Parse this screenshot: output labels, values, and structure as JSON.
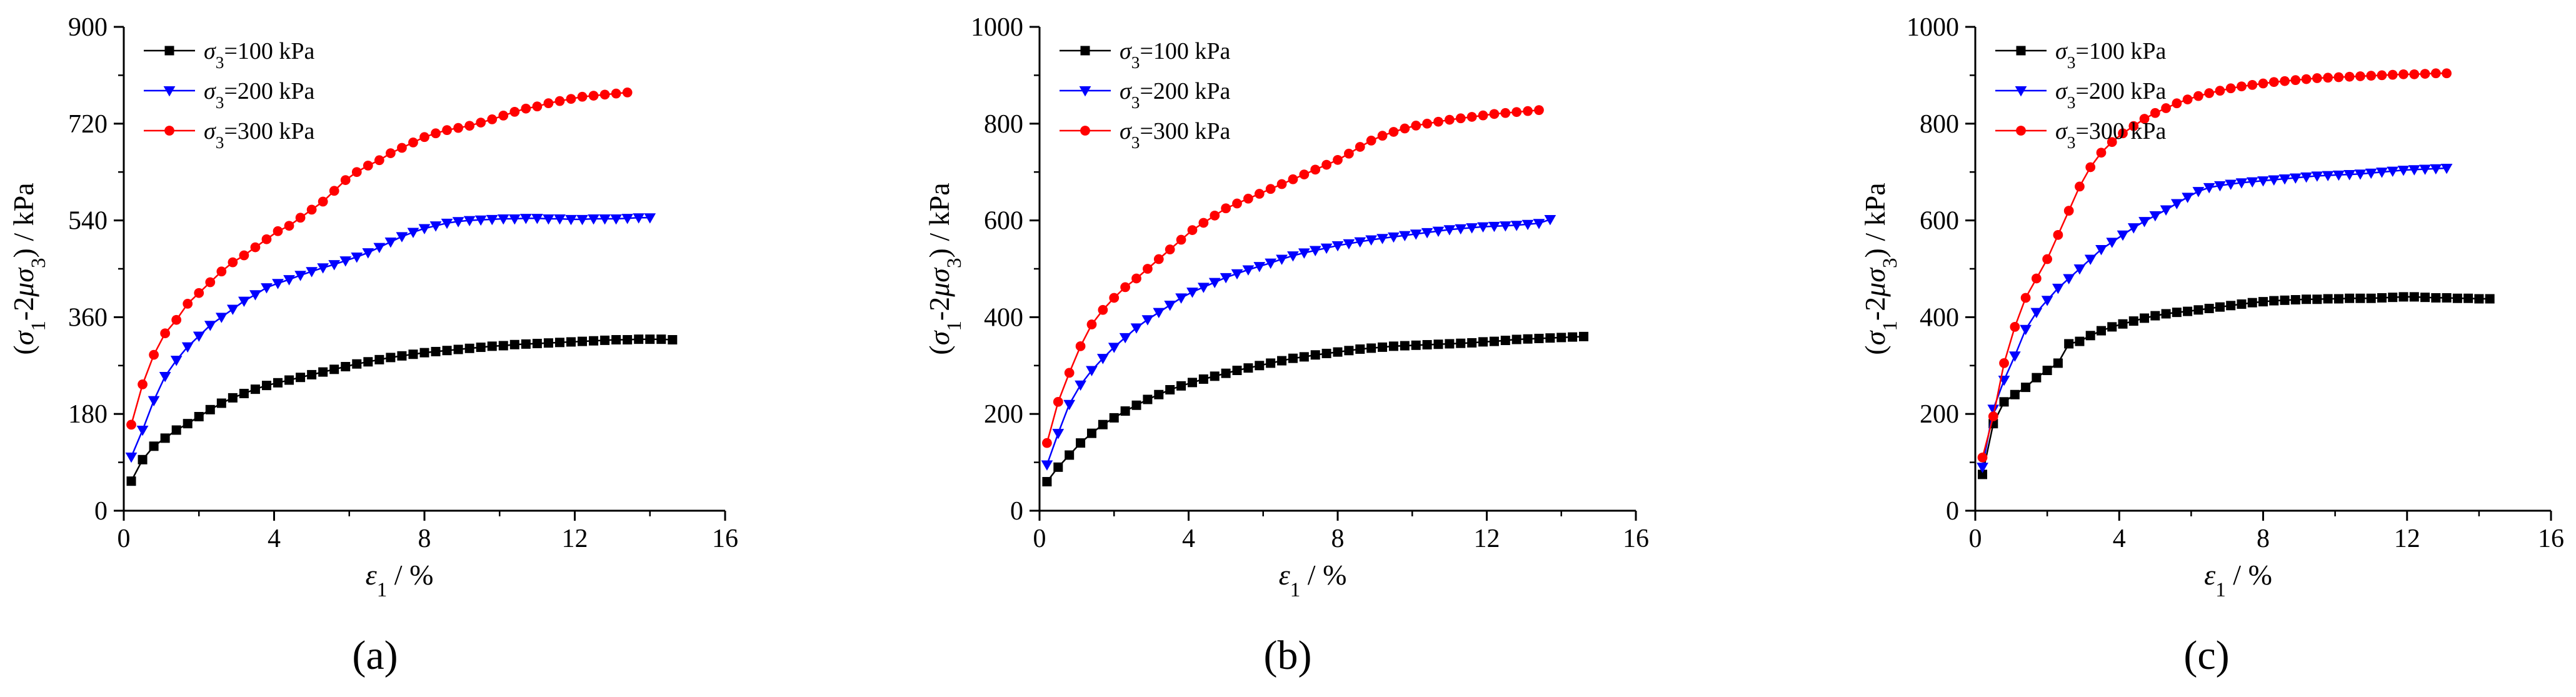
{
  "figure_labels": [
    "(a)",
    "(b)",
    "(c)"
  ],
  "chart_data": [
    {
      "type": "line",
      "panel": "(a)",
      "xlabel": "ε1 / %",
      "ylabel": "(σ1-2μσ3) / kPa",
      "xlim": [
        0,
        16
      ],
      "ylim": [
        0,
        900
      ],
      "xticks": [
        0,
        4,
        8,
        12,
        16
      ],
      "yticks": [
        0,
        180,
        360,
        540,
        720,
        900
      ],
      "legend_position": "top-left",
      "series": [
        {
          "name": "σ3=100 kPa",
          "color": "#000000",
          "marker": "square",
          "x": [
            0.2,
            0.5,
            0.8,
            1.1,
            1.4,
            1.7,
            2.0,
            2.3,
            2.6,
            2.9,
            3.2,
            3.5,
            3.8,
            4.1,
            4.4,
            4.7,
            5.0,
            5.3,
            5.6,
            5.9,
            6.2,
            6.5,
            6.8,
            7.1,
            7.4,
            7.7,
            8.0,
            8.3,
            8.6,
            8.9,
            9.2,
            9.5,
            9.8,
            10.1,
            10.4,
            10.7,
            11.0,
            11.3,
            11.6,
            11.9,
            12.2,
            12.5,
            12.8,
            13.1,
            13.4,
            13.7,
            14.0,
            14.3,
            14.6
          ],
          "y": [
            55,
            95,
            120,
            135,
            150,
            162,
            175,
            188,
            200,
            210,
            218,
            226,
            233,
            238,
            243,
            248,
            253,
            258,
            263,
            268,
            273,
            277,
            281,
            285,
            288,
            291,
            294,
            296,
            298,
            300,
            302,
            304,
            306,
            307,
            309,
            310,
            311,
            312,
            313,
            314,
            315,
            316,
            317,
            318,
            318,
            319,
            319,
            319,
            318
          ]
        },
        {
          "name": "σ3=200 kPa",
          "color": "#0000ff",
          "marker": "triangle-down",
          "x": [
            0.2,
            0.5,
            0.8,
            1.1,
            1.4,
            1.7,
            2.0,
            2.3,
            2.6,
            2.9,
            3.2,
            3.5,
            3.8,
            4.1,
            4.4,
            4.7,
            5.0,
            5.3,
            5.6,
            5.9,
            6.2,
            6.5,
            6.8,
            7.1,
            7.4,
            7.7,
            8.0,
            8.3,
            8.6,
            8.9,
            9.2,
            9.5,
            9.8,
            10.1,
            10.4,
            10.7,
            11.0,
            11.3,
            11.6,
            11.9,
            12.2,
            12.5,
            12.8,
            13.1,
            13.4,
            13.7,
            14.0
          ],
          "y": [
            100,
            150,
            205,
            250,
            280,
            305,
            325,
            345,
            360,
            375,
            390,
            402,
            415,
            423,
            430,
            438,
            445,
            452,
            458,
            465,
            472,
            480,
            490,
            500,
            510,
            518,
            525,
            530,
            535,
            538,
            540,
            541,
            542,
            543,
            543,
            544,
            544,
            543,
            543,
            542,
            542,
            543,
            543,
            543,
            544,
            545,
            545
          ]
        },
        {
          "name": "σ3=300 kPa",
          "color": "#ff0000",
          "marker": "circle",
          "x": [
            0.2,
            0.5,
            0.8,
            1.1,
            1.4,
            1.7,
            2.0,
            2.3,
            2.6,
            2.9,
            3.2,
            3.5,
            3.8,
            4.1,
            4.4,
            4.7,
            5.0,
            5.3,
            5.6,
            5.9,
            6.2,
            6.5,
            6.8,
            7.1,
            7.4,
            7.7,
            8.0,
            8.3,
            8.6,
            8.9,
            9.2,
            9.5,
            9.8,
            10.1,
            10.4,
            10.7,
            11.0,
            11.3,
            11.6,
            11.9,
            12.2,
            12.5,
            12.8,
            13.1,
            13.4
          ],
          "y": [
            160,
            235,
            290,
            330,
            355,
            385,
            405,
            425,
            445,
            462,
            475,
            490,
            505,
            520,
            530,
            545,
            560,
            575,
            595,
            615,
            630,
            642,
            652,
            665,
            675,
            685,
            695,
            702,
            708,
            712,
            716,
            722,
            728,
            735,
            742,
            748,
            752,
            758,
            762,
            766,
            770,
            772,
            774,
            776,
            778
          ]
        }
      ]
    },
    {
      "type": "line",
      "panel": "(b)",
      "xlabel": "ε1 / %",
      "ylabel": "(σ1-2μσ3) / kPa",
      "xlim": [
        0,
        16
      ],
      "ylim": [
        0,
        1000
      ],
      "xticks": [
        0,
        4,
        8,
        12,
        16
      ],
      "yticks": [
        0,
        200,
        400,
        600,
        800,
        1000
      ],
      "legend_position": "top-left",
      "series": [
        {
          "name": "σ3=100 kPa",
          "color": "#000000",
          "marker": "square",
          "x": [
            0.2,
            0.5,
            0.8,
            1.1,
            1.4,
            1.7,
            2.0,
            2.3,
            2.6,
            2.9,
            3.2,
            3.5,
            3.8,
            4.1,
            4.4,
            4.7,
            5.0,
            5.3,
            5.6,
            5.9,
            6.2,
            6.5,
            6.8,
            7.1,
            7.4,
            7.7,
            8.0,
            8.3,
            8.6,
            8.9,
            9.2,
            9.5,
            9.8,
            10.1,
            10.4,
            10.7,
            11.0,
            11.3,
            11.6,
            11.9,
            12.2,
            12.5,
            12.8,
            13.1,
            13.4,
            13.7,
            14.0,
            14.3,
            14.6
          ],
          "y": [
            60,
            90,
            115,
            140,
            160,
            178,
            192,
            206,
            218,
            230,
            240,
            250,
            258,
            265,
            272,
            278,
            284,
            290,
            295,
            300,
            305,
            310,
            315,
            318,
            322,
            325,
            328,
            331,
            334,
            336,
            338,
            340,
            341,
            342,
            343,
            344,
            345,
            346,
            347,
            349,
            350,
            352,
            354,
            355,
            356,
            357,
            358,
            359,
            360
          ]
        },
        {
          "name": "σ3=200 kPa",
          "color": "#0000ff",
          "marker": "triangle-down",
          "x": [
            0.2,
            0.5,
            0.8,
            1.1,
            1.4,
            1.7,
            2.0,
            2.3,
            2.6,
            2.9,
            3.2,
            3.5,
            3.8,
            4.1,
            4.4,
            4.7,
            5.0,
            5.3,
            5.6,
            5.9,
            6.2,
            6.5,
            6.8,
            7.1,
            7.4,
            7.7,
            8.0,
            8.3,
            8.6,
            8.9,
            9.2,
            9.5,
            9.8,
            10.1,
            10.4,
            10.7,
            11.0,
            11.3,
            11.6,
            11.9,
            12.2,
            12.5,
            12.8,
            13.1,
            13.4,
            13.7
          ],
          "y": [
            95,
            160,
            220,
            260,
            290,
            315,
            338,
            358,
            378,
            395,
            410,
            425,
            440,
            452,
            462,
            472,
            482,
            490,
            498,
            505,
            512,
            520,
            527,
            533,
            538,
            543,
            548,
            552,
            556,
            560,
            563,
            566,
            569,
            572,
            575,
            578,
            581,
            583,
            585,
            587,
            588,
            589,
            590,
            592,
            594,
            602
          ]
        },
        {
          "name": "σ3=300 kPa",
          "color": "#ff0000",
          "marker": "circle",
          "x": [
            0.2,
            0.5,
            0.8,
            1.1,
            1.4,
            1.7,
            2.0,
            2.3,
            2.6,
            2.9,
            3.2,
            3.5,
            3.8,
            4.1,
            4.4,
            4.7,
            5.0,
            5.3,
            5.6,
            5.9,
            6.2,
            6.5,
            6.8,
            7.1,
            7.4,
            7.7,
            8.0,
            8.3,
            8.6,
            8.9,
            9.2,
            9.5,
            9.8,
            10.1,
            10.4,
            10.7,
            11.0,
            11.3,
            11.6,
            11.9,
            12.2,
            12.5,
            12.8,
            13.1,
            13.4
          ],
          "y": [
            140,
            225,
            285,
            340,
            385,
            415,
            440,
            462,
            480,
            500,
            520,
            540,
            560,
            580,
            595,
            610,
            625,
            635,
            645,
            655,
            665,
            675,
            685,
            695,
            705,
            715,
            725,
            738,
            752,
            765,
            775,
            783,
            790,
            796,
            800,
            804,
            808,
            811,
            814,
            817,
            820,
            822,
            824,
            826,
            828
          ]
        }
      ]
    },
    {
      "type": "line",
      "panel": "(c)",
      "xlabel": "ε1 / %",
      "ylabel": "(σ1-2μσ3) / kPa",
      "xlim": [
        0,
        16
      ],
      "ylim": [
        0,
        1000
      ],
      "xticks": [
        0,
        4,
        8,
        12,
        16
      ],
      "yticks": [
        0,
        200,
        400,
        600,
        800,
        1000
      ],
      "legend_position": "top-left",
      "series": [
        {
          "name": "σ3=100 kPa",
          "color": "#000000",
          "marker": "square",
          "x": [
            0.2,
            0.5,
            0.8,
            1.1,
            1.4,
            1.7,
            2.0,
            2.3,
            2.6,
            2.9,
            3.2,
            3.5,
            3.8,
            4.1,
            4.4,
            4.7,
            5.0,
            5.3,
            5.6,
            5.9,
            6.2,
            6.5,
            6.8,
            7.1,
            7.4,
            7.7,
            8.0,
            8.3,
            8.6,
            8.9,
            9.2,
            9.5,
            9.8,
            10.1,
            10.4,
            10.7,
            11.0,
            11.3,
            11.6,
            11.9,
            12.2,
            12.5,
            12.8,
            13.1,
            13.4,
            13.7,
            14.0,
            14.3
          ],
          "y": [
            75,
            180,
            225,
            240,
            255,
            275,
            290,
            305,
            345,
            350,
            362,
            372,
            380,
            386,
            392,
            398,
            403,
            407,
            410,
            412,
            415,
            418,
            421,
            424,
            427,
            430,
            432,
            434,
            435,
            436,
            437,
            437,
            438,
            438,
            439,
            439,
            439,
            440,
            441,
            442,
            442,
            441,
            440,
            440,
            439,
            439,
            438,
            438
          ]
        },
        {
          "name": "σ3=200 kPa",
          "color": "#0000ff",
          "marker": "triangle-down",
          "x": [
            0.2,
            0.5,
            0.8,
            1.1,
            1.4,
            1.7,
            2.0,
            2.3,
            2.6,
            2.9,
            3.2,
            3.5,
            3.8,
            4.1,
            4.4,
            4.7,
            5.0,
            5.3,
            5.6,
            5.9,
            6.2,
            6.5,
            6.8,
            7.1,
            7.4,
            7.7,
            8.0,
            8.3,
            8.6,
            8.9,
            9.2,
            9.5,
            9.8,
            10.1,
            10.4,
            10.7,
            11.0,
            11.3,
            11.6,
            11.9,
            12.2,
            12.5,
            12.8,
            13.1
          ],
          "y": [
            90,
            210,
            270,
            320,
            375,
            410,
            435,
            460,
            480,
            500,
            520,
            540,
            555,
            570,
            585,
            598,
            610,
            622,
            635,
            648,
            660,
            668,
            672,
            675,
            678,
            680,
            682,
            684,
            686,
            688,
            690,
            692,
            693,
            694,
            695,
            696,
            698,
            700,
            702,
            704,
            705,
            706,
            707,
            708
          ]
        },
        {
          "name": "σ3=300 kPa",
          "color": "#ff0000",
          "marker": "circle",
          "x": [
            0.2,
            0.5,
            0.8,
            1.1,
            1.4,
            1.7,
            2.0,
            2.3,
            2.6,
            2.9,
            3.2,
            3.5,
            3.8,
            4.1,
            4.4,
            4.7,
            5.0,
            5.3,
            5.6,
            5.9,
            6.2,
            6.5,
            6.8,
            7.1,
            7.4,
            7.7,
            8.0,
            8.3,
            8.6,
            8.9,
            9.2,
            9.5,
            9.8,
            10.1,
            10.4,
            10.7,
            11.0,
            11.3,
            11.6,
            11.9,
            12.2,
            12.5,
            12.8,
            13.1
          ],
          "y": [
            110,
            195,
            305,
            380,
            440,
            480,
            520,
            570,
            620,
            670,
            710,
            740,
            762,
            780,
            795,
            810,
            822,
            832,
            842,
            850,
            857,
            863,
            868,
            873,
            877,
            880,
            883,
            886,
            888,
            890,
            892,
            894,
            895,
            896,
            897,
            898,
            899,
            900,
            901,
            902,
            902,
            903,
            904,
            904
          ]
        }
      ]
    }
  ]
}
